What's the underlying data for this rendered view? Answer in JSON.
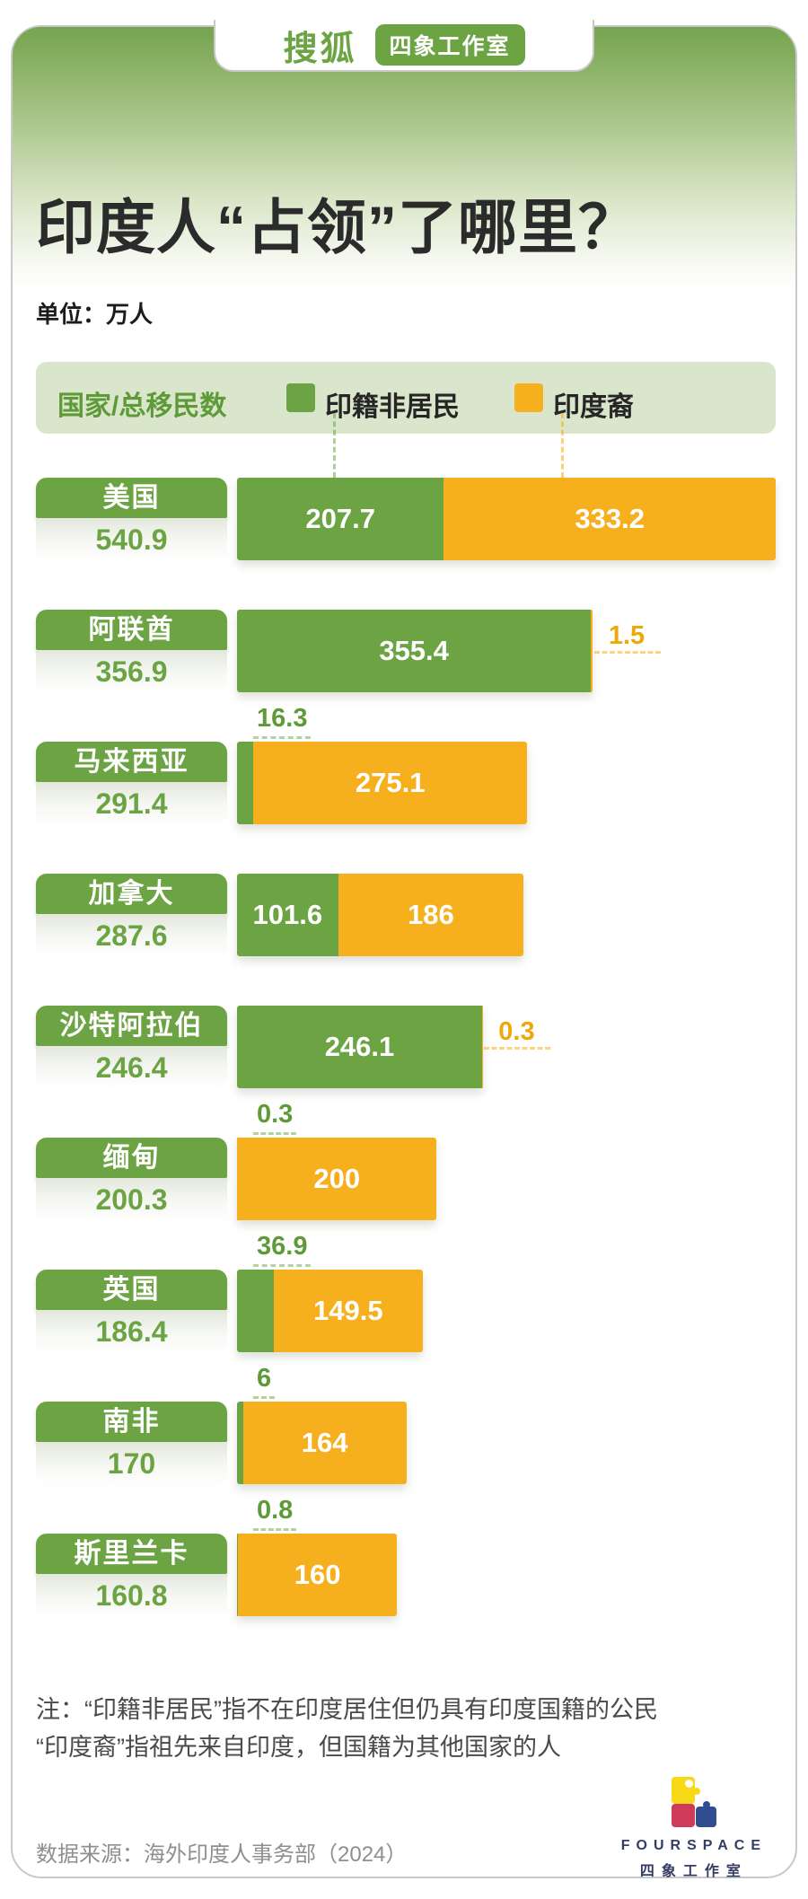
{
  "header": {
    "brand": "搜狐",
    "studio_badge": "四象工作室",
    "title": "印度人“占领”了哪里？",
    "unit_label": "单位：万人"
  },
  "legend": {
    "axis_label": "国家/总移民数",
    "series1_label": "印籍非居民",
    "series2_label": "印度裔"
  },
  "colors": {
    "green": "#6ca443",
    "orange": "#f6b01e",
    "legend_bg": "#dae6cb"
  },
  "chart_data": {
    "type": "bar",
    "orientation": "horizontal",
    "title": "印度人“占领”了哪里？",
    "unit": "万人",
    "legend_position": "top",
    "categories": [
      "美国",
      "阿联酋",
      "马来西亚",
      "加拿大",
      "沙特阿拉伯",
      "缅甸",
      "英国",
      "南非",
      "斯里兰卡"
    ],
    "totals": [
      540.9,
      356.9,
      291.4,
      287.6,
      246.4,
      200.3,
      186.4,
      170,
      160.8
    ],
    "series": [
      {
        "name": "印籍非居民",
        "color": "#6ca443",
        "values": [
          207.7,
          355.4,
          16.3,
          101.6,
          246.1,
          0.3,
          36.9,
          6,
          0.8
        ]
      },
      {
        "name": "印度裔",
        "color": "#f6b01e",
        "values": [
          333.2,
          1.5,
          275.1,
          186,
          0.3,
          200,
          149.5,
          164,
          160
        ]
      }
    ]
  },
  "rows": [
    {
      "country": "美国",
      "total": "540.9",
      "nri": 207.7,
      "pio": 333.2,
      "nri_label": "207.7",
      "pio_label": "333.2",
      "nri_pos": "inside",
      "pio_pos": "inside"
    },
    {
      "country": "阿联酋",
      "total": "356.9",
      "nri": 355.4,
      "pio": 1.5,
      "nri_label": "355.4",
      "pio_label": "1.5",
      "nri_pos": "inside",
      "pio_pos": "right"
    },
    {
      "country": "马来西亚",
      "total": "291.4",
      "nri": 16.3,
      "pio": 275.1,
      "nri_label": "16.3",
      "pio_label": "275.1",
      "nri_pos": "above",
      "pio_pos": "inside"
    },
    {
      "country": "加拿大",
      "total": "287.6",
      "nri": 101.6,
      "pio": 186,
      "nri_label": "101.6",
      "pio_label": "186",
      "nri_pos": "inside",
      "pio_pos": "inside"
    },
    {
      "country": "沙特阿拉伯",
      "total": "246.4",
      "nri": 246.1,
      "pio": 0.3,
      "nri_label": "246.1",
      "pio_label": "0.3",
      "nri_pos": "inside",
      "pio_pos": "right"
    },
    {
      "country": "缅甸",
      "total": "200.3",
      "nri": 0.3,
      "pio": 200,
      "nri_label": "0.3",
      "pio_label": "200",
      "nri_pos": "above",
      "pio_pos": "inside"
    },
    {
      "country": "英国",
      "total": "186.4",
      "nri": 36.9,
      "pio": 149.5,
      "nri_label": "36.9",
      "pio_label": "149.5",
      "nri_pos": "above",
      "pio_pos": "inside"
    },
    {
      "country": "南非",
      "total": "170",
      "nri": 6,
      "pio": 164,
      "nri_label": "6",
      "pio_label": "164",
      "nri_pos": "above",
      "pio_pos": "inside"
    },
    {
      "country": "斯里兰卡",
      "total": "160.8",
      "nri": 0.8,
      "pio": 160,
      "nri_label": "0.8",
      "pio_label": "160",
      "nri_pos": "above",
      "pio_pos": "inside"
    }
  ],
  "note": {
    "line1": "注：“印籍非居民”指不在印度居住但仍具有印度国籍的公民",
    "line2": "“印度裔”指祖先来自印度，但国籍为其他国家的人"
  },
  "footer": {
    "source": "数据来源：海外印度人事务部（2024）",
    "logo_en": "FOURSPACE",
    "logo_cn": "四象工作室"
  }
}
